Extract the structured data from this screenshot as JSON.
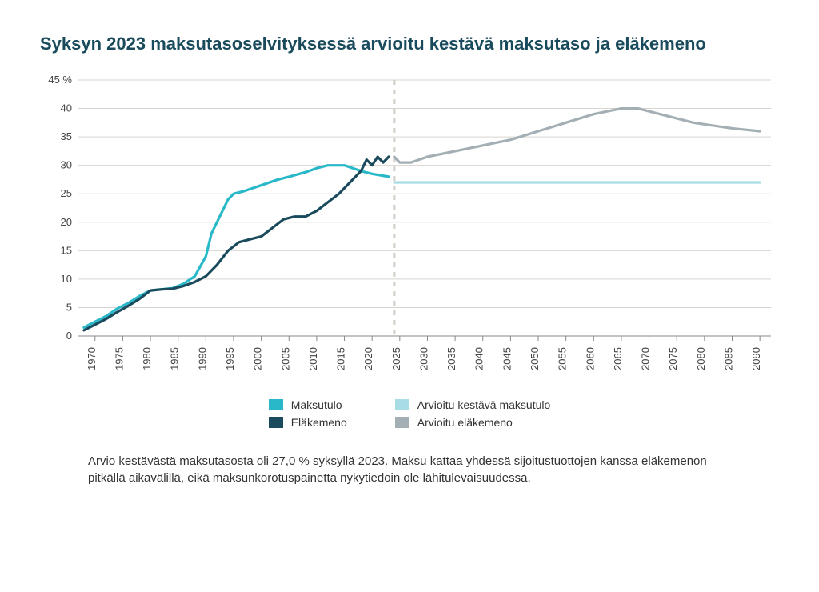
{
  "chart": {
    "type": "line",
    "title": "Syksyn 2023 maksutasoselvityksessä arvioitu kestävä maksutaso ja eläkemeno",
    "title_color": "#1a4b5c",
    "title_fontsize": 22,
    "background_color": "#ffffff",
    "grid_color": "#d8d5cf",
    "axis_color": "#888888",
    "divider_x": 2024,
    "divider_color": "#d0cec7",
    "xlim": [
      1967,
      2092
    ],
    "ylim": [
      0,
      45
    ],
    "ytick_step": 5,
    "yticks": [
      0,
      5,
      10,
      15,
      20,
      25,
      30,
      35,
      40,
      45
    ],
    "ylabel_suffix_first": " %",
    "xticks": [
      1970,
      1975,
      1980,
      1985,
      1990,
      1995,
      2000,
      2005,
      2010,
      2015,
      2020,
      2025,
      2030,
      2035,
      2040,
      2045,
      2050,
      2055,
      2060,
      2065,
      2070,
      2075,
      2080,
      2085,
      2090
    ],
    "label_fontsize": 13,
    "line_width": 3.2,
    "series": {
      "maksutulo": {
        "label": "Maksutulo",
        "color": "#29b8c9",
        "points": [
          [
            1968,
            1.5
          ],
          [
            1970,
            2.5
          ],
          [
            1972,
            3.5
          ],
          [
            1974,
            4.8
          ],
          [
            1976,
            5.8
          ],
          [
            1978,
            7.0
          ],
          [
            1980,
            8.0
          ],
          [
            1982,
            8.2
          ],
          [
            1984,
            8.4
          ],
          [
            1986,
            9.2
          ],
          [
            1988,
            10.5
          ],
          [
            1990,
            14.0
          ],
          [
            1991,
            18.0
          ],
          [
            1992,
            20.0
          ],
          [
            1993,
            22.0
          ],
          [
            1994,
            24.0
          ],
          [
            1995,
            25.0
          ],
          [
            1997,
            25.5
          ],
          [
            2000,
            26.5
          ],
          [
            2003,
            27.5
          ],
          [
            2005,
            28.0
          ],
          [
            2008,
            28.8
          ],
          [
            2010,
            29.5
          ],
          [
            2012,
            30.0
          ],
          [
            2015,
            30.0
          ],
          [
            2018,
            29.0
          ],
          [
            2020,
            28.5
          ],
          [
            2023,
            28.0
          ]
        ]
      },
      "elakemeno": {
        "label": "Eläkemeno",
        "color": "#1a4b5c",
        "points": [
          [
            1968,
            1.0
          ],
          [
            1970,
            2.0
          ],
          [
            1972,
            3.0
          ],
          [
            1974,
            4.2
          ],
          [
            1976,
            5.3
          ],
          [
            1978,
            6.5
          ],
          [
            1980,
            8.0
          ],
          [
            1982,
            8.2
          ],
          [
            1984,
            8.3
          ],
          [
            1986,
            8.8
          ],
          [
            1988,
            9.5
          ],
          [
            1990,
            10.5
          ],
          [
            1992,
            12.5
          ],
          [
            1994,
            15.0
          ],
          [
            1996,
            16.5
          ],
          [
            1998,
            17.0
          ],
          [
            2000,
            17.5
          ],
          [
            2002,
            19.0
          ],
          [
            2004,
            20.5
          ],
          [
            2006,
            21.0
          ],
          [
            2008,
            21.0
          ],
          [
            2010,
            22.0
          ],
          [
            2012,
            23.5
          ],
          [
            2014,
            25.0
          ],
          [
            2016,
            27.0
          ],
          [
            2018,
            29.0
          ],
          [
            2019,
            31.0
          ],
          [
            2020,
            30.0
          ],
          [
            2021,
            31.5
          ],
          [
            2022,
            30.5
          ],
          [
            2023,
            31.5
          ]
        ]
      },
      "arvioitu_maksutulo": {
        "label": "Arvioitu kestävä maksutulo",
        "color": "#a8dde5",
        "points": [
          [
            2024,
            27.0
          ],
          [
            2030,
            27.0
          ],
          [
            2040,
            27.0
          ],
          [
            2050,
            27.0
          ],
          [
            2060,
            27.0
          ],
          [
            2070,
            27.0
          ],
          [
            2080,
            27.0
          ],
          [
            2090,
            27.0
          ]
        ]
      },
      "arvioitu_elakemeno": {
        "label": "Arvioitu eläkemeno",
        "color": "#a3afb5",
        "points": [
          [
            2024,
            31.5
          ],
          [
            2025,
            30.5
          ],
          [
            2027,
            30.5
          ],
          [
            2030,
            31.5
          ],
          [
            2035,
            32.5
          ],
          [
            2040,
            33.5
          ],
          [
            2045,
            34.5
          ],
          [
            2050,
            36.0
          ],
          [
            2055,
            37.5
          ],
          [
            2060,
            39.0
          ],
          [
            2065,
            40.0
          ],
          [
            2068,
            40.0
          ],
          [
            2072,
            39.0
          ],
          [
            2078,
            37.5
          ],
          [
            2085,
            36.5
          ],
          [
            2090,
            36.0
          ]
        ]
      }
    },
    "legend": {
      "col1": [
        "maksutulo",
        "elakemeno"
      ],
      "col2": [
        "arvioitu_maksutulo",
        "arvioitu_elakemeno"
      ]
    },
    "caption": "Arvio kestävästä maksutasosta oli 27,0 % syksyllä 2023. Maksu kattaa yhdessä sijoitustuottojen kanssa eläkemenon pitkällä aikavälillä, eikä maksunkorotuspainetta nykytiedoin ole lähitulevaisuudessa."
  }
}
